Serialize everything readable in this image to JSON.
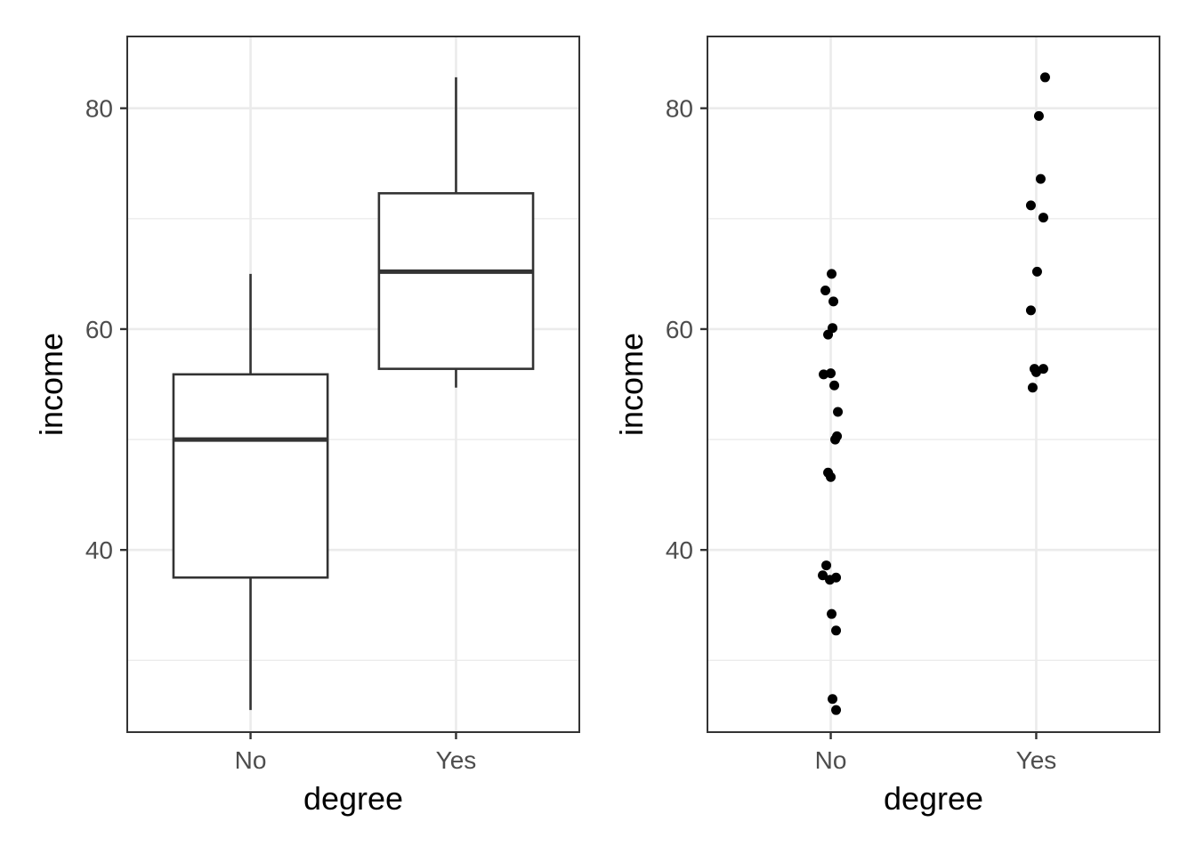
{
  "chart_data": [
    {
      "type": "box",
      "categories": [
        "No",
        "Yes"
      ],
      "xlabel": "degree",
      "ylabel": "income",
      "ylim": [
        23.5,
        86.5
      ],
      "yticks": [
        40,
        60,
        80
      ],
      "y_minor_gridlines": [
        30,
        50,
        70
      ],
      "grid": true,
      "series": [
        {
          "category": "No",
          "min": 25.5,
          "q1": 37.5,
          "median": 50,
          "q3": 55.9,
          "max": 65
        },
        {
          "category": "Yes",
          "min": 54.7,
          "q1": 56.4,
          "median": 65.2,
          "q3": 72.3,
          "max": 82.8
        }
      ]
    },
    {
      "type": "scatter",
      "categories": [
        "No",
        "Yes"
      ],
      "xlabel": "degree",
      "ylabel": "income",
      "ylim": [
        23.5,
        86.5
      ],
      "yticks": [
        40,
        60,
        80
      ],
      "y_minor_gridlines": [
        30,
        50,
        70
      ],
      "grid": true,
      "jitter": true,
      "series": [
        {
          "category": "No",
          "values": [
            65,
            63.5,
            62.5,
            60.1,
            59.5,
            55.9,
            56,
            54.9,
            52.5,
            50.3,
            50,
            47,
            46.6,
            38.6,
            37.7,
            37.3,
            37.5,
            34.2,
            32.7,
            26.5,
            25.5
          ]
        },
        {
          "category": "Yes",
          "values": [
            82.8,
            79.3,
            73.6,
            71.2,
            70.1,
            65.2,
            61.7,
            56.4,
            56.1,
            56.4,
            54.7
          ]
        }
      ]
    }
  ]
}
